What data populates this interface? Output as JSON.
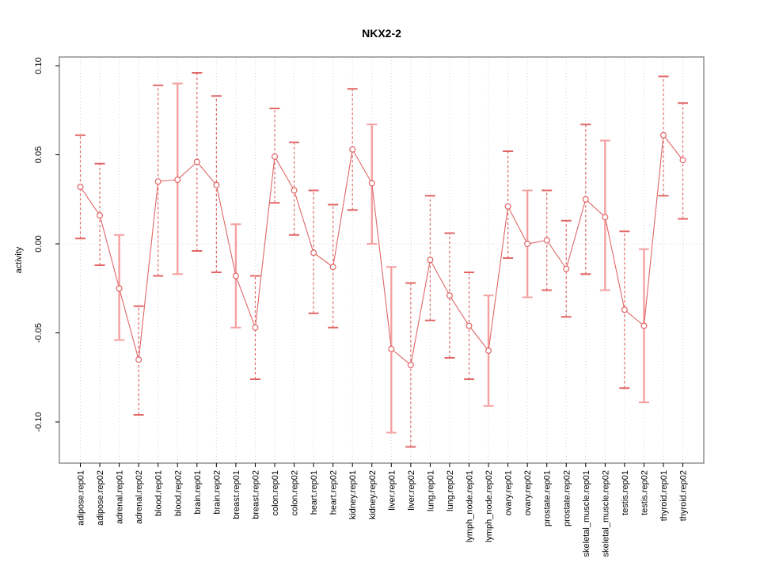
{
  "chart_data": {
    "type": "scatter",
    "title": "NKX2-2",
    "ylabel": "activity",
    "xlabel": "",
    "ylim": [
      -0.115,
      0.105
    ],
    "legend": "none",
    "grid": {
      "vertical_dotted": true,
      "zero_line_dotted": true
    },
    "y_ticks": [
      {
        "label": "0.10",
        "value": 0.1
      },
      {
        "label": "0.05",
        "value": 0.05
      },
      {
        "label": "0.00",
        "value": 0.0
      },
      {
        "label": "-0.05",
        "value": -0.05
      },
      {
        "label": "-0.10",
        "value": -0.1
      }
    ],
    "categories": [
      "adipose.rep01",
      "adipose.rep02",
      "adrenal.rep01",
      "adrenal.rep02",
      "blood.rep01",
      "blood.rep02",
      "brain.rep01",
      "brain.rep02",
      "breast.rep01",
      "breast.rep02",
      "colon.rep01",
      "colon.rep02",
      "heart.rep01",
      "heart.rep02",
      "kidney.rep01",
      "kidney.rep02",
      "liver.rep01",
      "liver.rep02",
      "lung.rep01",
      "lung.rep02",
      "lymph_node.rep01",
      "lymph_node.rep02",
      "ovary.rep01",
      "ovary.rep02",
      "prostate.rep01",
      "prostate.rep02",
      "skeletal_muscle.rep01",
      "skeletal_muscle.rep02",
      "testis.rep01",
      "testis.rep02",
      "thyroid.rep01",
      "thyroid.rep02"
    ],
    "series": [
      {
        "name": "activity",
        "points": [
          {
            "category": "adipose.rep01",
            "value": 0.032,
            "err_low": 0.003,
            "err_high": 0.061,
            "bar_style": "dashed"
          },
          {
            "category": "adipose.rep02",
            "value": 0.016,
            "err_low": -0.012,
            "err_high": 0.045,
            "bar_style": "dashed"
          },
          {
            "category": "adrenal.rep01",
            "value": -0.025,
            "err_low": -0.054,
            "err_high": 0.005,
            "bar_style": "solid"
          },
          {
            "category": "adrenal.rep02",
            "value": -0.065,
            "err_low": -0.096,
            "err_high": -0.035,
            "bar_style": "dashed"
          },
          {
            "category": "blood.rep01",
            "value": 0.035,
            "err_low": -0.018,
            "err_high": 0.089,
            "bar_style": "dashed"
          },
          {
            "category": "blood.rep02",
            "value": 0.036,
            "err_low": -0.017,
            "err_high": 0.09,
            "bar_style": "solid"
          },
          {
            "category": "brain.rep01",
            "value": 0.046,
            "err_low": -0.004,
            "err_high": 0.096,
            "bar_style": "dashed"
          },
          {
            "category": "brain.rep02",
            "value": 0.033,
            "err_low": -0.016,
            "err_high": 0.083,
            "bar_style": "dashed"
          },
          {
            "category": "breast.rep01",
            "value": -0.018,
            "err_low": -0.047,
            "err_high": 0.011,
            "bar_style": "solid"
          },
          {
            "category": "breast.rep02",
            "value": -0.047,
            "err_low": -0.076,
            "err_high": -0.018,
            "bar_style": "dashed"
          },
          {
            "category": "colon.rep01",
            "value": 0.049,
            "err_low": 0.023,
            "err_high": 0.076,
            "bar_style": "dashed"
          },
          {
            "category": "colon.rep02",
            "value": 0.03,
            "err_low": 0.005,
            "err_high": 0.057,
            "bar_style": "dashed"
          },
          {
            "category": "heart.rep01",
            "value": -0.005,
            "err_low": -0.039,
            "err_high": 0.03,
            "bar_style": "dashed"
          },
          {
            "category": "heart.rep02",
            "value": -0.013,
            "err_low": -0.047,
            "err_high": 0.022,
            "bar_style": "dashed"
          },
          {
            "category": "kidney.rep01",
            "value": 0.053,
            "err_low": 0.019,
            "err_high": 0.087,
            "bar_style": "dashed"
          },
          {
            "category": "kidney.rep02",
            "value": 0.034,
            "err_low": 0.0,
            "err_high": 0.067,
            "bar_style": "solid"
          },
          {
            "category": "liver.rep01",
            "value": -0.059,
            "err_low": -0.106,
            "err_high": -0.013,
            "bar_style": "solid"
          },
          {
            "category": "liver.rep02",
            "value": -0.068,
            "err_low": -0.114,
            "err_high": -0.022,
            "bar_style": "dashed"
          },
          {
            "category": "lung.rep01",
            "value": -0.009,
            "err_low": -0.043,
            "err_high": 0.027,
            "bar_style": "dashed"
          },
          {
            "category": "lung.rep02",
            "value": -0.029,
            "err_low": -0.064,
            "err_high": 0.006,
            "bar_style": "dashed"
          },
          {
            "category": "lymph_node.rep01",
            "value": -0.046,
            "err_low": -0.076,
            "err_high": -0.016,
            "bar_style": "dashed"
          },
          {
            "category": "lymph_node.rep02",
            "value": -0.06,
            "err_low": -0.091,
            "err_high": -0.029,
            "bar_style": "solid"
          },
          {
            "category": "ovary.rep01",
            "value": 0.021,
            "err_low": -0.008,
            "err_high": 0.052,
            "bar_style": "dashed"
          },
          {
            "category": "ovary.rep02",
            "value": 0.0,
            "err_low": -0.03,
            "err_high": 0.03,
            "bar_style": "solid"
          },
          {
            "category": "prostate.rep01",
            "value": 0.002,
            "err_low": -0.026,
            "err_high": 0.03,
            "bar_style": "dashed"
          },
          {
            "category": "prostate.rep02",
            "value": -0.014,
            "err_low": -0.041,
            "err_high": 0.013,
            "bar_style": "dashed"
          },
          {
            "category": "skeletal_muscle.rep01",
            "value": 0.025,
            "err_low": -0.017,
            "err_high": 0.067,
            "bar_style": "dashed"
          },
          {
            "category": "skeletal_muscle.rep02",
            "value": 0.015,
            "err_low": -0.026,
            "err_high": 0.058,
            "bar_style": "solid"
          },
          {
            "category": "testis.rep01",
            "value": -0.037,
            "err_low": -0.081,
            "err_high": 0.007,
            "bar_style": "dashed"
          },
          {
            "category": "testis.rep02",
            "value": -0.046,
            "err_low": -0.089,
            "err_high": -0.003,
            "bar_style": "solid"
          },
          {
            "category": "thyroid.rep01",
            "value": 0.061,
            "err_low": 0.027,
            "err_high": 0.094,
            "bar_style": "dashed"
          },
          {
            "category": "thyroid.rep02",
            "value": 0.047,
            "err_low": 0.014,
            "err_high": 0.079,
            "bar_style": "dashed"
          }
        ]
      }
    ],
    "colors": {
      "point": "#e06666",
      "series_line": "#e06666",
      "errbar_dashed": "#e06666",
      "errbar_solid": "#f5a0a0",
      "grid": "#d4d4d4",
      "frame": "#7f7f7f",
      "text": "#000000"
    }
  }
}
